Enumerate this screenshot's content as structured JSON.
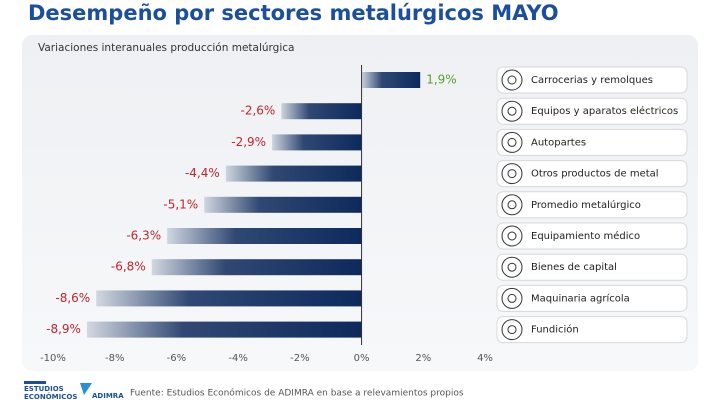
{
  "chart_data": {
    "type": "bar",
    "orientation": "horizontal",
    "title": "Desempeño por sectores metalúrgicos MAYO",
    "subtitle": "Variaciones interanuales producción metalúrgica",
    "categories": [
      "Carrocerias y remolques",
      "Equipos y aparatos eléctricos",
      "Autopartes",
      "Otros productos de metal",
      "Promedio metalúrgico",
      "Equipamiento médico",
      "Bienes de capital",
      "Maquinaria agrícola",
      "Fundición"
    ],
    "values": [
      1.9,
      -2.6,
      -2.9,
      -4.4,
      -5.1,
      -6.3,
      -6.8,
      -8.6,
      -8.9
    ],
    "value_labels": [
      "1,9%",
      "-2,6%",
      "-2,9%",
      "-4,4%",
      "-5,1%",
      "-6,3%",
      "-6,8%",
      "-8,6%",
      "-8,9%"
    ],
    "color": "#0d2a5c",
    "positive_label_color": "#5aa02c",
    "negative_label_color": "#c0262c",
    "xlim": [
      -10,
      4
    ],
    "xticks": [
      {
        "value": -10,
        "label": "-10%"
      },
      {
        "value": -8,
        "label": "-8%"
      },
      {
        "value": -6,
        "label": "-6%"
      },
      {
        "value": -4,
        "label": "-4%"
      },
      {
        "value": -2,
        "label": "-2%"
      },
      {
        "value": 0,
        "label": "0%"
      },
      {
        "value": 2,
        "label": "2%"
      },
      {
        "value": 4,
        "label": "4%"
      }
    ],
    "grid": false,
    "source": "Fuente: Estudios Económicos de ADIMRA en base a relevamientos propios",
    "logo_texts": [
      "ESTUDIOS",
      "ECONÓMICOS",
      "ADIMRA"
    ]
  }
}
